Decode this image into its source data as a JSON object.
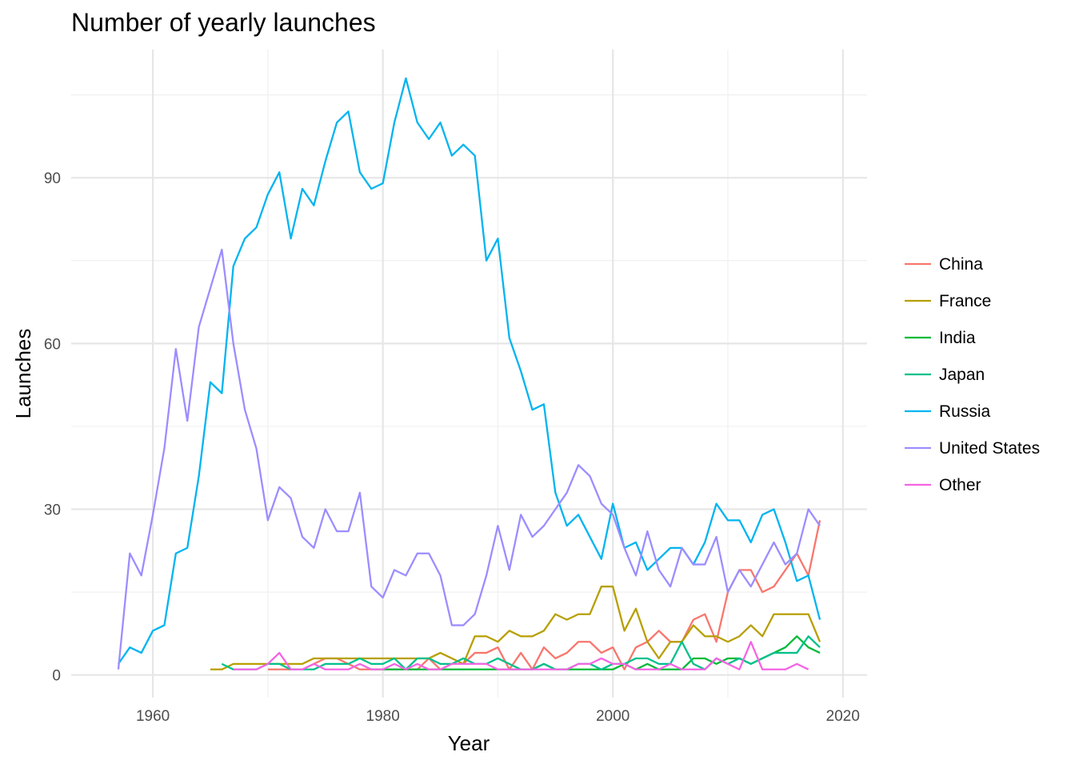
{
  "chart_data": {
    "type": "line",
    "title": "Number of yearly launches",
    "xlabel": "Year",
    "ylabel": "Launches",
    "xlim": [
      1952.9,
      2022.1
    ],
    "ylim": [
      -4.1,
      113.2
    ],
    "xticks": [
      1960,
      1980,
      2000,
      2020
    ],
    "xtick_labels": [
      "1960",
      "1980",
      "2000",
      "2020"
    ],
    "yticks": [
      0,
      30,
      60,
      90
    ],
    "ytick_labels": [
      "0",
      "30",
      "60",
      "90"
    ],
    "grid": true,
    "legend_position": "right",
    "series": [
      {
        "name": "China",
        "color": "#F8766D",
        "x": [
          1970,
          1971,
          1972,
          1973,
          1974,
          1975,
          1976,
          1977,
          1978,
          1979,
          1980,
          1981,
          1982,
          1983,
          1984,
          1985,
          1986,
          1987,
          1988,
          1989,
          1990,
          1991,
          1992,
          1993,
          1994,
          1995,
          1996,
          1997,
          1998,
          1999,
          2000,
          2001,
          2002,
          2003,
          2004,
          2005,
          2006,
          2007,
          2008,
          2009,
          2010,
          2011,
          2012,
          2013,
          2014,
          2015,
          2016,
          2017,
          2018
        ],
        "y": [
          1,
          1,
          1,
          1,
          2,
          3,
          3,
          2,
          1,
          1,
          1,
          1,
          1,
          1,
          3,
          1,
          2,
          2,
          4,
          4,
          5,
          1,
          4,
          1,
          5,
          3,
          4,
          6,
          6,
          4,
          5,
          1,
          5,
          6,
          8,
          6,
          6,
          10,
          11,
          6,
          15,
          19,
          19,
          15,
          16,
          19,
          22,
          18,
          28
        ]
      },
      {
        "name": "France",
        "color": "#B79F00",
        "x": [
          1965,
          1966,
          1967,
          1968,
          1969,
          1970,
          1971,
          1972,
          1973,
          1974,
          1975,
          1976,
          1977,
          1978,
          1979,
          1980,
          1981,
          1982,
          1983,
          1984,
          1985,
          1986,
          1987,
          1988,
          1989,
          1990,
          1991,
          1992,
          1993,
          1994,
          1995,
          1996,
          1997,
          1998,
          1999,
          2000,
          2001,
          2002,
          2003,
          2004,
          2005,
          2006,
          2007,
          2008,
          2009,
          2010,
          2011,
          2012,
          2013,
          2014,
          2015,
          2016,
          2017,
          2018
        ],
        "y": [
          1,
          1,
          2,
          2,
          2,
          2,
          2,
          2,
          2,
          3,
          3,
          3,
          3,
          3,
          3,
          3,
          3,
          3,
          3,
          3,
          4,
          3,
          2,
          7,
          7,
          6,
          8,
          7,
          7,
          8,
          11,
          10,
          11,
          11,
          16,
          16,
          8,
          12,
          6,
          3,
          6,
          6,
          9,
          7,
          7,
          6,
          7,
          9,
          7,
          11,
          11,
          11,
          11,
          6
        ]
      },
      {
        "name": "India",
        "color": "#00BA38",
        "x": [
          1979,
          1980,
          1981,
          1982,
          1983,
          1984,
          1985,
          1986,
          1987,
          1988,
          1989,
          1990,
          1991,
          1992,
          1993,
          1994,
          1995,
          1996,
          1997,
          1998,
          1999,
          2000,
          2001,
          2002,
          2003,
          2004,
          2005,
          2006,
          2007,
          2008,
          2009,
          2010,
          2011,
          2012,
          2013,
          2014,
          2015,
          2016,
          2017,
          2018
        ],
        "y": [
          1,
          1,
          1,
          1,
          1,
          1,
          1,
          1,
          1,
          1,
          1,
          1,
          1,
          1,
          1,
          2,
          1,
          1,
          1,
          1,
          1,
          1,
          2,
          1,
          2,
          1,
          1,
          1,
          3,
          3,
          2,
          3,
          3,
          2,
          3,
          4,
          5,
          7,
          5,
          4
        ]
      },
      {
        "name": "Japan",
        "color": "#00C08B",
        "x": [
          1966,
          1967,
          1968,
          1969,
          1970,
          1971,
          1972,
          1973,
          1974,
          1975,
          1976,
          1977,
          1978,
          1979,
          1980,
          1981,
          1982,
          1983,
          1984,
          1985,
          1986,
          1987,
          1988,
          1989,
          1990,
          1991,
          1992,
          1993,
          1994,
          1995,
          1996,
          1997,
          1998,
          1999,
          2000,
          2001,
          2002,
          2003,
          2004,
          2005,
          2006,
          2007,
          2008,
          2009,
          2010,
          2011,
          2012,
          2013,
          2014,
          2015,
          2016,
          2017,
          2018
        ],
        "y": [
          2,
          1,
          1,
          1,
          2,
          2,
          1,
          1,
          1,
          2,
          2,
          2,
          3,
          2,
          2,
          3,
          1,
          3,
          3,
          2,
          2,
          3,
          2,
          2,
          3,
          2,
          1,
          1,
          2,
          1,
          1,
          2,
          2,
          1,
          2,
          2,
          3,
          3,
          2,
          2,
          6,
          2,
          1,
          3,
          2,
          3,
          2,
          3,
          4,
          4,
          4,
          7,
          5
        ]
      },
      {
        "name": "Russia",
        "color": "#00B4F0",
        "x": [
          1957,
          1958,
          1959,
          1960,
          1961,
          1962,
          1963,
          1964,
          1965,
          1966,
          1967,
          1968,
          1969,
          1970,
          1971,
          1972,
          1973,
          1974,
          1975,
          1976,
          1977,
          1978,
          1979,
          1980,
          1981,
          1982,
          1983,
          1984,
          1985,
          1986,
          1987,
          1988,
          1989,
          1990,
          1991,
          1992,
          1993,
          1994,
          1995,
          1996,
          1997,
          1998,
          1999,
          2000,
          2001,
          2002,
          2003,
          2004,
          2005,
          2006,
          2007,
          2008,
          2009,
          2010,
          2011,
          2012,
          2013,
          2014,
          2015,
          2016,
          2017,
          2018
        ],
        "y": [
          2,
          5,
          4,
          8,
          9,
          22,
          23,
          36,
          53,
          51,
          74,
          79,
          81,
          87,
          91,
          79,
          88,
          85,
          93,
          100,
          102,
          91,
          88,
          89,
          100,
          108,
          100,
          97,
          100,
          94,
          96,
          94,
          75,
          79,
          61,
          55,
          48,
          49,
          33,
          27,
          29,
          25,
          21,
          31,
          23,
          24,
          19,
          21,
          23,
          23,
          20,
          24,
          31,
          28,
          28,
          24,
          29,
          30,
          24,
          17,
          18,
          10
        ]
      },
      {
        "name": "United States",
        "color": "#9C8DFF",
        "x": [
          1957,
          1958,
          1959,
          1960,
          1961,
          1962,
          1963,
          1964,
          1965,
          1966,
          1967,
          1968,
          1969,
          1970,
          1971,
          1972,
          1973,
          1974,
          1975,
          1976,
          1977,
          1978,
          1979,
          1980,
          1981,
          1982,
          1983,
          1984,
          1985,
          1986,
          1987,
          1988,
          1989,
          1990,
          1991,
          1992,
          1993,
          1994,
          1995,
          1996,
          1997,
          1998,
          1999,
          2000,
          2001,
          2002,
          2003,
          2004,
          2005,
          2006,
          2007,
          2008,
          2009,
          2010,
          2011,
          2012,
          2013,
          2014,
          2015,
          2016,
          2017,
          2018
        ],
        "y": [
          1,
          22,
          18,
          29,
          41,
          59,
          46,
          63,
          70,
          77,
          60,
          48,
          41,
          28,
          34,
          32,
          25,
          23,
          30,
          26,
          26,
          33,
          16,
          14,
          19,
          18,
          22,
          22,
          18,
          9,
          9,
          11,
          18,
          27,
          19,
          29,
          25,
          27,
          30,
          33,
          38,
          36,
          31,
          29,
          23,
          18,
          26,
          19,
          16,
          23,
          20,
          20,
          25,
          15,
          19,
          16,
          20,
          24,
          20,
          22,
          30,
          27
        ]
      },
      {
        "name": "Other",
        "color": "#F564E3",
        "x": [
          1967,
          1968,
          1969,
          1970,
          1971,
          1972,
          1973,
          1974,
          1975,
          1976,
          1977,
          1978,
          1979,
          1980,
          1981,
          1982,
          1983,
          1984,
          1985,
          1986,
          1987,
          1988,
          1989,
          1990,
          1991,
          1992,
          1993,
          1994,
          1995,
          1996,
          1997,
          1998,
          1999,
          2000,
          2001,
          2002,
          2003,
          2004,
          2005,
          2006,
          2007,
          2008,
          2009,
          2010,
          2011,
          2012,
          2013,
          2014,
          2015,
          2016,
          2017
        ],
        "y": [
          1,
          1,
          1,
          2,
          4,
          1,
          1,
          2,
          1,
          1,
          1,
          2,
          1,
          1,
          2,
          1,
          2,
          1,
          1,
          2,
          2,
          2,
          2,
          1,
          1,
          1,
          1,
          1,
          1,
          1,
          2,
          2,
          3,
          2,
          2,
          1,
          1,
          1,
          2,
          1,
          1,
          1,
          3,
          2,
          1,
          6,
          1,
          1,
          1,
          2,
          1
        ]
      }
    ]
  }
}
